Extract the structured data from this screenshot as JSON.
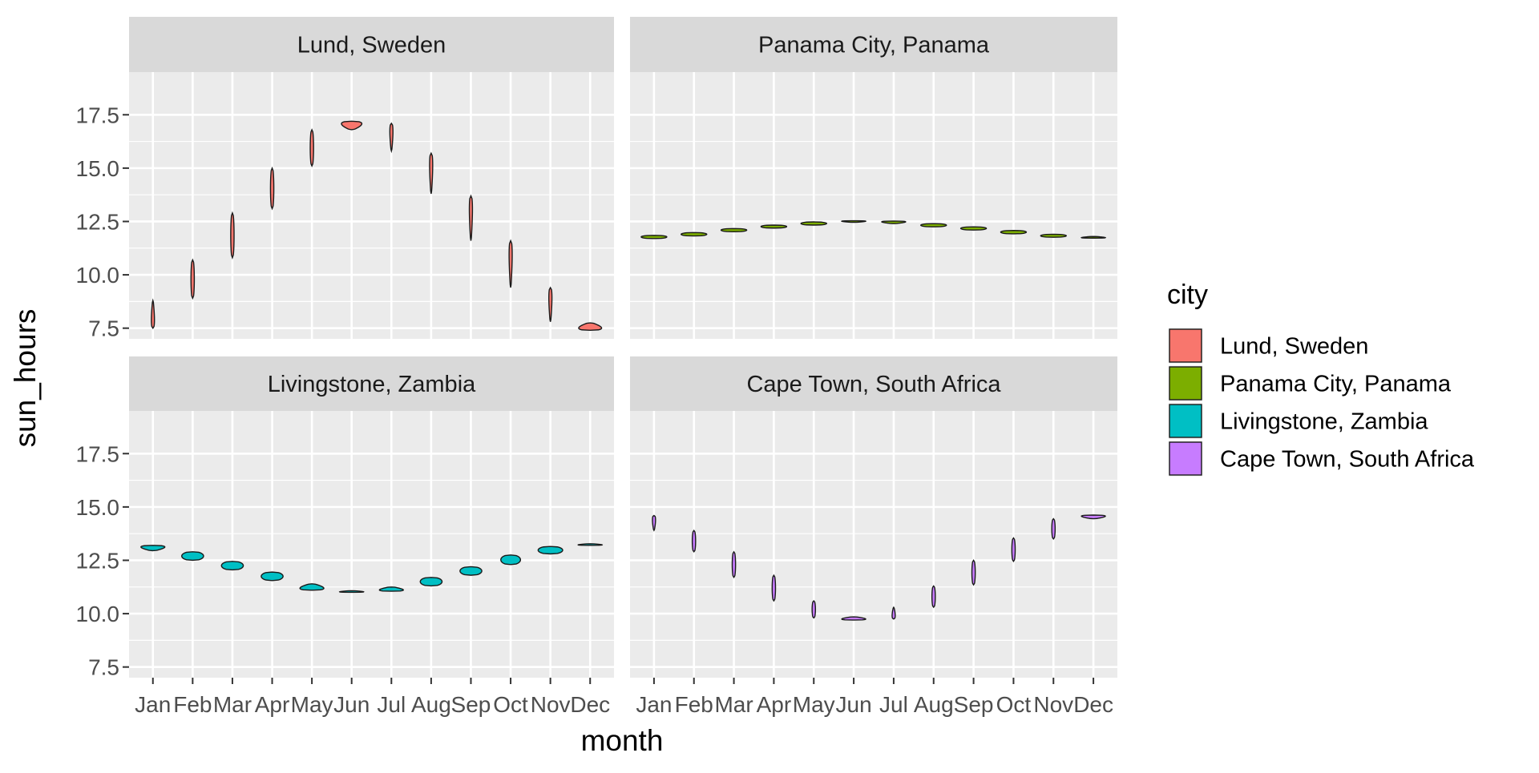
{
  "chart_data": {
    "type": "violin",
    "title": "",
    "xlabel": "month",
    "ylabel": "sun_hours",
    "ylim": [
      7,
      19.5
    ],
    "yticks": [
      7.5,
      10.0,
      12.5,
      15.0,
      17.5
    ],
    "ytick_labels": [
      "7.5",
      "10.0",
      "12.5",
      "15.0",
      "17.5"
    ],
    "categories": [
      "Jan",
      "Feb",
      "Mar",
      "Apr",
      "May",
      "Jun",
      "Jul",
      "Aug",
      "Sep",
      "Oct",
      "Nov",
      "Dec"
    ],
    "grid": true,
    "facet_layout": "2x2",
    "legend": {
      "title": "city",
      "placement": "right",
      "entries": [
        "Lund, Sweden",
        "Panama City, Panama",
        "Livingstone, Zambia",
        "Cape Town, South Africa"
      ]
    },
    "colors": {
      "Lund, Sweden": "#F8766D",
      "Panama City, Panama": "#7CAE00",
      "Livingstone, Zambia": "#00BFC4",
      "Cape Town, South Africa": "#C77CFF"
    },
    "panel_background": "#EBEBEB",
    "strip_background": "#D9D9D9",
    "series": [
      {
        "name": "Lund, Sweden",
        "ranges": [
          [
            7.5,
            8.8
          ],
          [
            8.9,
            10.7
          ],
          [
            10.8,
            12.9
          ],
          [
            13.1,
            15.0
          ],
          [
            15.1,
            16.8
          ],
          [
            16.8,
            17.2
          ],
          [
            15.8,
            17.1
          ],
          [
            13.8,
            15.7
          ],
          [
            11.6,
            13.7
          ],
          [
            9.4,
            11.6
          ],
          [
            7.8,
            9.4
          ],
          [
            7.4,
            7.75
          ]
        ],
        "modes": [
          "low",
          "uniform",
          "uniform",
          "uniform",
          "uniform",
          "high",
          "high",
          "high",
          "high",
          "high",
          "high",
          "low"
        ]
      },
      {
        "name": "Panama City, Panama",
        "ranges": [
          [
            11.7,
            11.85
          ],
          [
            11.82,
            11.98
          ],
          [
            12.02,
            12.17
          ],
          [
            12.19,
            12.33
          ],
          [
            12.33,
            12.48
          ],
          [
            12.46,
            12.52
          ],
          [
            12.4,
            12.52
          ],
          [
            12.25,
            12.4
          ],
          [
            12.1,
            12.25
          ],
          [
            11.92,
            12.08
          ],
          [
            11.76,
            11.9
          ],
          [
            11.72,
            11.78
          ]
        ],
        "modes": [
          "uniform",
          "uniform",
          "uniform",
          "uniform",
          "uniform",
          "high",
          "high",
          "uniform",
          "uniform",
          "uniform",
          "uniform",
          "low"
        ]
      },
      {
        "name": "Livingstone, Zambia",
        "ranges": [
          [
            12.95,
            13.2
          ],
          [
            12.5,
            12.9
          ],
          [
            12.05,
            12.45
          ],
          [
            11.55,
            11.95
          ],
          [
            11.1,
            11.4
          ],
          [
            11.0,
            11.06
          ],
          [
            11.05,
            11.25
          ],
          [
            11.3,
            11.7
          ],
          [
            11.8,
            12.2
          ],
          [
            12.3,
            12.75
          ],
          [
            12.8,
            13.15
          ],
          [
            13.2,
            13.26
          ]
        ],
        "modes": [
          "high",
          "uniform",
          "uniform",
          "uniform",
          "low",
          "low",
          "low",
          "uniform",
          "uniform",
          "uniform",
          "uniform",
          "low"
        ]
      },
      {
        "name": "Cape Town, South Africa",
        "ranges": [
          [
            13.9,
            14.6
          ],
          [
            12.9,
            13.9
          ],
          [
            11.7,
            12.9
          ],
          [
            10.6,
            11.8
          ],
          [
            9.8,
            10.6
          ],
          [
            9.7,
            9.85
          ],
          [
            9.75,
            10.3
          ],
          [
            10.3,
            11.3
          ],
          [
            11.35,
            12.5
          ],
          [
            12.45,
            13.55
          ],
          [
            13.5,
            14.45
          ],
          [
            14.45,
            14.62
          ]
        ],
        "modes": [
          "high",
          "uniform",
          "uniform",
          "uniform",
          "uniform",
          "low",
          "low",
          "uniform",
          "uniform",
          "uniform",
          "uniform",
          "high"
        ]
      }
    ]
  }
}
